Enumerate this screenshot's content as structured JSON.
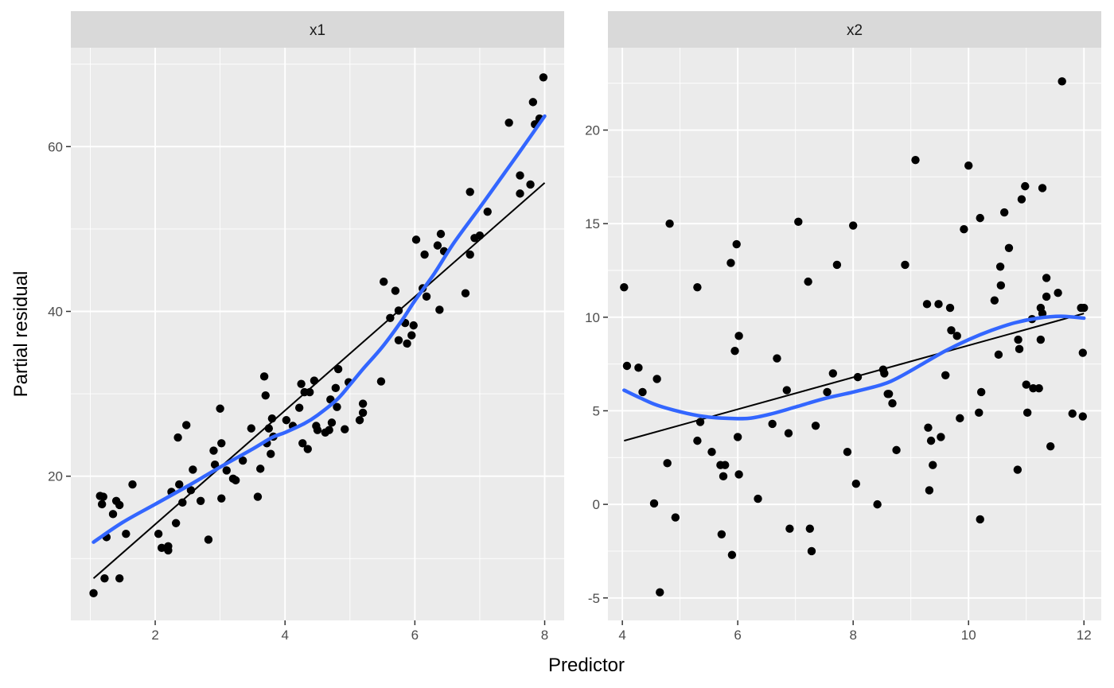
{
  "chart_data": [
    {
      "type": "scatter",
      "panel": "x1",
      "strip_label": "x1",
      "xlim": [
        0.7,
        8.3
      ],
      "ylim": [
        2.5,
        72.0
      ],
      "x_ticks": [
        2,
        4,
        6,
        8
      ],
      "x_tick_labels": [
        "2",
        "4",
        "6",
        "8"
      ],
      "y_ticks": [
        20,
        40,
        60
      ],
      "y_tick_labels": [
        "20",
        "40",
        "60"
      ],
      "grid": true,
      "points": [
        [
          1.05,
          5.8
        ],
        [
          1.15,
          17.6
        ],
        [
          1.2,
          17.5
        ],
        [
          1.18,
          16.6
        ],
        [
          1.22,
          7.6
        ],
        [
          1.25,
          12.6
        ],
        [
          1.35,
          15.4
        ],
        [
          1.4,
          17.0
        ],
        [
          1.45,
          16.5
        ],
        [
          1.45,
          7.6
        ],
        [
          1.55,
          13.0
        ],
        [
          1.65,
          19.0
        ],
        [
          2.05,
          13.0
        ],
        [
          2.1,
          11.3
        ],
        [
          2.2,
          11.5
        ],
        [
          2.2,
          11.0
        ],
        [
          2.25,
          18.1
        ],
        [
          2.32,
          14.3
        ],
        [
          2.35,
          24.7
        ],
        [
          2.37,
          19.0
        ],
        [
          2.42,
          16.8
        ],
        [
          2.48,
          26.2
        ],
        [
          2.55,
          18.3
        ],
        [
          2.58,
          20.8
        ],
        [
          2.7,
          17.0
        ],
        [
          2.82,
          12.3
        ],
        [
          2.9,
          23.1
        ],
        [
          2.92,
          21.4
        ],
        [
          3.0,
          28.2
        ],
        [
          3.02,
          24.0
        ],
        [
          3.02,
          17.3
        ],
        [
          3.1,
          20.7
        ],
        [
          3.2,
          19.7
        ],
        [
          3.24,
          19.5
        ],
        [
          3.35,
          21.9
        ],
        [
          3.48,
          25.8
        ],
        [
          3.58,
          17.5
        ],
        [
          3.62,
          20.9
        ],
        [
          3.68,
          32.1
        ],
        [
          3.7,
          29.8
        ],
        [
          3.72,
          24.0
        ],
        [
          3.75,
          25.8
        ],
        [
          3.78,
          22.7
        ],
        [
          3.8,
          27.0
        ],
        [
          3.82,
          24.8
        ],
        [
          4.02,
          26.8
        ],
        [
          4.12,
          26.1
        ],
        [
          4.22,
          28.3
        ],
        [
          4.25,
          31.2
        ],
        [
          4.27,
          24.0
        ],
        [
          4.3,
          30.2
        ],
        [
          4.35,
          23.3
        ],
        [
          4.38,
          30.2
        ],
        [
          4.45,
          31.6
        ],
        [
          4.48,
          26.1
        ],
        [
          4.5,
          25.6
        ],
        [
          4.62,
          25.3
        ],
        [
          4.68,
          25.6
        ],
        [
          4.7,
          29.3
        ],
        [
          4.72,
          26.5
        ],
        [
          4.78,
          30.7
        ],
        [
          4.8,
          28.4
        ],
        [
          4.82,
          33.0
        ],
        [
          4.92,
          25.7
        ],
        [
          4.98,
          31.4
        ],
        [
          5.15,
          26.8
        ],
        [
          5.2,
          27.7
        ],
        [
          5.2,
          28.8
        ],
        [
          5.48,
          31.5
        ],
        [
          5.52,
          43.6
        ],
        [
          5.62,
          39.2
        ],
        [
          5.7,
          42.5
        ],
        [
          5.75,
          40.1
        ],
        [
          5.75,
          36.5
        ],
        [
          5.85,
          38.6
        ],
        [
          5.88,
          36.1
        ],
        [
          5.95,
          37.1
        ],
        [
          5.98,
          38.3
        ],
        [
          6.02,
          48.7
        ],
        [
          6.12,
          42.8
        ],
        [
          6.15,
          46.9
        ],
        [
          6.18,
          41.8
        ],
        [
          6.35,
          48.0
        ],
        [
          6.38,
          40.2
        ],
        [
          6.4,
          49.4
        ],
        [
          6.45,
          47.3
        ],
        [
          6.78,
          42.2
        ],
        [
          6.85,
          54.5
        ],
        [
          6.85,
          46.9
        ],
        [
          6.92,
          48.9
        ],
        [
          7.0,
          49.2
        ],
        [
          7.12,
          52.1
        ],
        [
          7.45,
          62.9
        ],
        [
          7.62,
          56.5
        ],
        [
          7.62,
          54.3
        ],
        [
          7.78,
          55.4
        ],
        [
          7.82,
          65.4
        ],
        [
          7.85,
          62.7
        ],
        [
          7.92,
          63.4
        ],
        [
          7.98,
          68.4
        ]
      ],
      "linear_fit": [
        [
          1.05,
          7.6
        ],
        [
          8.0,
          55.6
        ]
      ],
      "smooth_fit": [
        [
          1.05,
          12.0
        ],
        [
          1.5,
          14.4
        ],
        [
          2.0,
          16.6
        ],
        [
          2.5,
          18.8
        ],
        [
          3.0,
          21.1
        ],
        [
          3.5,
          23.3
        ],
        [
          3.8,
          24.7
        ],
        [
          4.0,
          25.3
        ],
        [
          4.3,
          26.4
        ],
        [
          4.5,
          27.4
        ],
        [
          4.8,
          29.3
        ],
        [
          5.0,
          31.1
        ],
        [
          5.2,
          33.0
        ],
        [
          5.5,
          35.7
        ],
        [
          5.8,
          38.9
        ],
        [
          6.0,
          41.3
        ],
        [
          6.3,
          44.6
        ],
        [
          6.6,
          48.3
        ],
        [
          7.0,
          52.6
        ],
        [
          7.3,
          55.9
        ],
        [
          7.6,
          59.2
        ],
        [
          8.0,
          63.7
        ]
      ]
    },
    {
      "type": "scatter",
      "panel": "x2",
      "strip_label": "x2",
      "xlim": [
        3.75,
        12.3
      ],
      "ylim": [
        -6.2,
        24.4
      ],
      "x_ticks": [
        4,
        6,
        8,
        10,
        12
      ],
      "x_tick_labels": [
        "4",
        "6",
        "8",
        "10",
        "12"
      ],
      "y_ticks": [
        -5,
        0,
        5,
        10,
        15,
        20
      ],
      "y_tick_labels": [
        "-5",
        "0",
        "5",
        "10",
        "15",
        "20"
      ],
      "grid": true,
      "points": [
        [
          4.03,
          11.6
        ],
        [
          4.08,
          7.4
        ],
        [
          4.28,
          7.3
        ],
        [
          4.35,
          6.0
        ],
        [
          4.55,
          0.05
        ],
        [
          4.6,
          6.7
        ],
        [
          4.65,
          -4.7
        ],
        [
          4.78,
          2.2
        ],
        [
          4.82,
          15.0
        ],
        [
          4.92,
          -0.7
        ],
        [
          5.3,
          11.6
        ],
        [
          5.3,
          3.4
        ],
        [
          5.35,
          4.4
        ],
        [
          5.55,
          2.8
        ],
        [
          5.7,
          2.1
        ],
        [
          5.72,
          -1.6
        ],
        [
          5.75,
          1.5
        ],
        [
          5.78,
          2.1
        ],
        [
          5.88,
          12.9
        ],
        [
          5.9,
          -2.7
        ],
        [
          5.95,
          8.2
        ],
        [
          5.98,
          13.9
        ],
        [
          6.0,
          3.6
        ],
        [
          6.02,
          1.6
        ],
        [
          6.02,
          9.0
        ],
        [
          6.35,
          0.3
        ],
        [
          6.6,
          4.3
        ],
        [
          6.68,
          7.8
        ],
        [
          6.85,
          6.1
        ],
        [
          6.88,
          3.8
        ],
        [
          6.9,
          -1.3
        ],
        [
          7.05,
          15.1
        ],
        [
          7.22,
          11.9
        ],
        [
          7.25,
          -1.3
        ],
        [
          7.28,
          -2.5
        ],
        [
          7.35,
          4.2
        ],
        [
          7.55,
          6.0
        ],
        [
          7.65,
          7.0
        ],
        [
          7.72,
          12.8
        ],
        [
          7.9,
          2.8
        ],
        [
          8.0,
          14.9
        ],
        [
          8.05,
          1.1
        ],
        [
          8.08,
          6.8
        ],
        [
          8.42,
          0.0
        ],
        [
          8.52,
          7.2
        ],
        [
          8.54,
          7.0
        ],
        [
          8.6,
          5.9
        ],
        [
          8.62,
          5.9
        ],
        [
          8.68,
          5.4
        ],
        [
          8.75,
          2.9
        ],
        [
          8.9,
          12.8
        ],
        [
          9.08,
          18.4
        ],
        [
          9.28,
          10.7
        ],
        [
          9.3,
          4.1
        ],
        [
          9.32,
          0.75
        ],
        [
          9.35,
          3.4
        ],
        [
          9.38,
          2.1
        ],
        [
          9.48,
          10.7
        ],
        [
          9.52,
          3.6
        ],
        [
          9.6,
          6.9
        ],
        [
          9.68,
          10.5
        ],
        [
          9.7,
          9.3
        ],
        [
          9.8,
          9.0
        ],
        [
          9.85,
          4.6
        ],
        [
          9.92,
          14.7
        ],
        [
          10.0,
          18.1
        ],
        [
          10.18,
          4.9
        ],
        [
          10.2,
          15.3
        ],
        [
          10.2,
          -0.8
        ],
        [
          10.22,
          6.0
        ],
        [
          10.45,
          10.9
        ],
        [
          10.52,
          8.0
        ],
        [
          10.55,
          12.7
        ],
        [
          10.56,
          11.7
        ],
        [
          10.62,
          15.6
        ],
        [
          10.7,
          13.7
        ],
        [
          10.85,
          1.85
        ],
        [
          10.86,
          8.8
        ],
        [
          10.88,
          8.3
        ],
        [
          10.92,
          16.3
        ],
        [
          10.98,
          17.0
        ],
        [
          11.0,
          6.4
        ],
        [
          11.02,
          4.9
        ],
        [
          11.1,
          9.9
        ],
        [
          11.12,
          6.2
        ],
        [
          11.22,
          6.2
        ],
        [
          11.25,
          8.8
        ],
        [
          11.25,
          10.5
        ],
        [
          11.28,
          16.9
        ],
        [
          11.28,
          10.2
        ],
        [
          11.35,
          12.1
        ],
        [
          11.35,
          11.1
        ],
        [
          11.42,
          3.1
        ],
        [
          11.55,
          11.3
        ],
        [
          11.62,
          22.6
        ],
        [
          11.8,
          4.85
        ],
        [
          11.95,
          10.5
        ],
        [
          11.98,
          8.1
        ],
        [
          11.98,
          4.7
        ],
        [
          12.0,
          10.5
        ]
      ],
      "linear_fit": [
        [
          4.03,
          3.4
        ],
        [
          12.0,
          10.2
        ]
      ],
      "smooth_fit": [
        [
          4.03,
          6.1
        ],
        [
          4.3,
          5.7
        ],
        [
          4.6,
          5.3
        ],
        [
          5.0,
          4.95
        ],
        [
          5.4,
          4.7
        ],
        [
          5.8,
          4.6
        ],
        [
          6.2,
          4.6
        ],
        [
          6.6,
          4.85
        ],
        [
          7.0,
          5.2
        ],
        [
          7.5,
          5.65
        ],
        [
          8.0,
          6.0
        ],
        [
          8.5,
          6.4
        ],
        [
          8.8,
          6.8
        ],
        [
          9.2,
          7.5
        ],
        [
          9.6,
          8.2
        ],
        [
          10.0,
          8.8
        ],
        [
          10.4,
          9.3
        ],
        [
          10.8,
          9.7
        ],
        [
          11.2,
          9.95
        ],
        [
          11.6,
          10.05
        ],
        [
          12.0,
          9.95
        ]
      ]
    }
  ],
  "xlabel": "Predictor",
  "ylabel": "Partial residual",
  "colors": {
    "panel_bg": "#ebebeb",
    "strip_bg": "#d9d9d9",
    "grid": "#ffffff",
    "points": "#000000",
    "linear_fit": "#000000",
    "smooth_fit": "#3366ff"
  }
}
